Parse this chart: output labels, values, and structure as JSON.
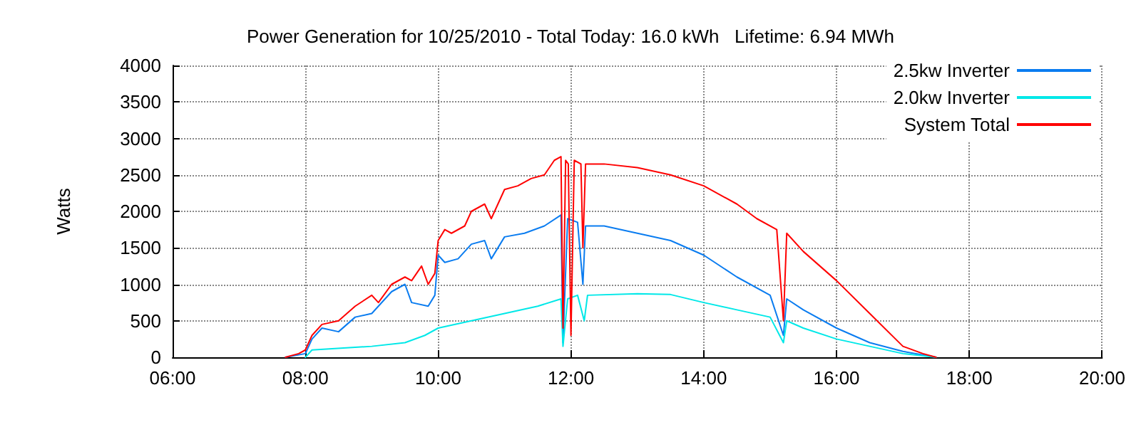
{
  "chart_data": {
    "type": "line",
    "title": "Power Generation for 10/25/2010 - Total Today: 16.0 kWh   Lifetime: 6.94 MWh",
    "ylabel": "Watts",
    "xlim": [
      6,
      20
    ],
    "xticks": [
      {
        "value": 6,
        "label": "06:00"
      },
      {
        "value": 8,
        "label": "08:00"
      },
      {
        "value": 10,
        "label": "10:00"
      },
      {
        "value": 12,
        "label": "12:00"
      },
      {
        "value": 14,
        "label": "14:00"
      },
      {
        "value": 16,
        "label": "16:00"
      },
      {
        "value": 18,
        "label": "18:00"
      },
      {
        "value": 20,
        "label": "20:00"
      }
    ],
    "ylim": [
      0,
      4000
    ],
    "yticks": [
      0,
      500,
      1000,
      1500,
      2000,
      2500,
      3000,
      3500,
      4000
    ],
    "grid": true,
    "legend": "top right",
    "marker": "none",
    "line_style": "solid",
    "series": [
      {
        "name": "2.5kw Inverter",
        "color": "#0a7cf0",
        "x": [
          7.7,
          8.0,
          8.1,
          8.25,
          8.5,
          8.75,
          9.0,
          9.3,
          9.5,
          9.6,
          9.85,
          9.95,
          10.0,
          10.1,
          10.3,
          10.5,
          10.7,
          10.8,
          11.0,
          11.3,
          11.6,
          11.85,
          11.88,
          11.95,
          12.1,
          12.18,
          12.22,
          12.5,
          13.0,
          13.5,
          14.0,
          14.5,
          15.0,
          15.2,
          15.25,
          15.5,
          16.0,
          16.5,
          17.0,
          17.5
        ],
        "values": [
          0,
          50,
          250,
          400,
          350,
          550,
          600,
          900,
          1000,
          750,
          700,
          850,
          1400,
          1300,
          1350,
          1550,
          1600,
          1350,
          1650,
          1700,
          1800,
          1950,
          200,
          1900,
          1850,
          1000,
          1800,
          1800,
          1700,
          1600,
          1400,
          1100,
          850,
          300,
          800,
          650,
          400,
          200,
          80,
          0
        ]
      },
      {
        "name": "2.0kw Inverter",
        "color": "#00e8e8",
        "x": [
          8.0,
          8.1,
          9.0,
          9.5,
          9.8,
          10.0,
          10.5,
          11.0,
          11.5,
          11.85,
          11.88,
          11.95,
          12.1,
          12.2,
          12.25,
          13.0,
          13.5,
          14.0,
          14.5,
          15.0,
          15.2,
          15.25,
          15.5,
          16.0,
          16.5,
          17.0,
          17.5
        ],
        "values": [
          0,
          100,
          150,
          200,
          300,
          400,
          500,
          600,
          700,
          800,
          150,
          800,
          850,
          500,
          850,
          870,
          860,
          750,
          650,
          550,
          200,
          500,
          400,
          250,
          150,
          50,
          0
        ]
      },
      {
        "name": "System Total",
        "color": "#ff0000",
        "x": [
          7.7,
          7.9,
          8.0,
          8.1,
          8.25,
          8.5,
          8.75,
          9.0,
          9.1,
          9.3,
          9.5,
          9.6,
          9.75,
          9.85,
          9.95,
          10.0,
          10.1,
          10.2,
          10.4,
          10.5,
          10.7,
          10.8,
          11.0,
          11.2,
          11.4,
          11.6,
          11.75,
          11.85,
          11.88,
          11.92,
          11.96,
          12.0,
          12.05,
          12.15,
          12.18,
          12.22,
          12.5,
          13.0,
          13.5,
          14.0,
          14.5,
          14.8,
          15.1,
          15.2,
          15.25,
          15.5,
          16.0,
          16.5,
          17.0,
          17.3,
          17.5
        ],
        "values": [
          0,
          50,
          100,
          300,
          450,
          500,
          700,
          850,
          750,
          1000,
          1100,
          1050,
          1250,
          1000,
          1150,
          1600,
          1750,
          1700,
          1800,
          2000,
          2100,
          1900,
          2300,
          2350,
          2450,
          2500,
          2700,
          2750,
          400,
          2700,
          2650,
          300,
          2700,
          2650,
          1500,
          2650,
          2650,
          2600,
          2500,
          2350,
          2100,
          1900,
          1750,
          500,
          1700,
          1450,
          1050,
          600,
          150,
          50,
          0
        ]
      }
    ]
  }
}
